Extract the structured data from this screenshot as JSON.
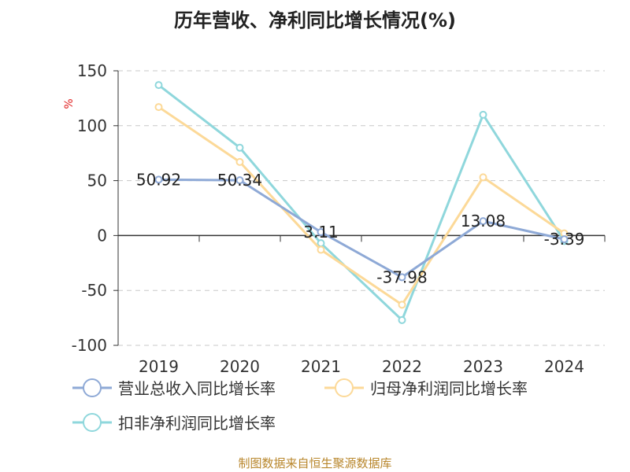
{
  "title": "历年营收、净利同比增长情况(%)",
  "source": "制图数据来自恒生聚源数据库",
  "colors": {
    "revenue": "#8ea9d6",
    "net_profit": "#fcd998",
    "deducted_net_profit": "#8fd7dc",
    "grid": "#c8c8c8",
    "axis": "#333333",
    "unit": "#e02020"
  },
  "chart_data": {
    "type": "line",
    "title": "历年营收、净利同比增长情况(%)",
    "ylabel": "%",
    "xlabel": "",
    "categories": [
      "2019",
      "2020",
      "2021",
      "2022",
      "2023",
      "2024"
    ],
    "ylim": [
      -100,
      150
    ],
    "yticks": [
      150,
      100,
      50,
      0,
      -50,
      -100
    ],
    "grid": true,
    "legend_position": "bottom",
    "series": [
      {
        "name": "营业总收入同比增长率",
        "color": "#8ea9d6",
        "values": [
          50.92,
          50.34,
          3.11,
          -37.98,
          13.08,
          -3.39
        ],
        "labels": [
          "50.92",
          "50.34",
          "3.11",
          "-37.98",
          "13.08",
          "-3.39"
        ]
      },
      {
        "name": "归母净利润同比增长率",
        "color": "#fcd998",
        "values": [
          117,
          67,
          -13,
          -63,
          53,
          2
        ],
        "labels": []
      },
      {
        "name": "扣非净利润同比增长率",
        "color": "#8fd7dc",
        "values": [
          137,
          80,
          -7,
          -77,
          110,
          -5
        ],
        "labels": []
      }
    ]
  }
}
